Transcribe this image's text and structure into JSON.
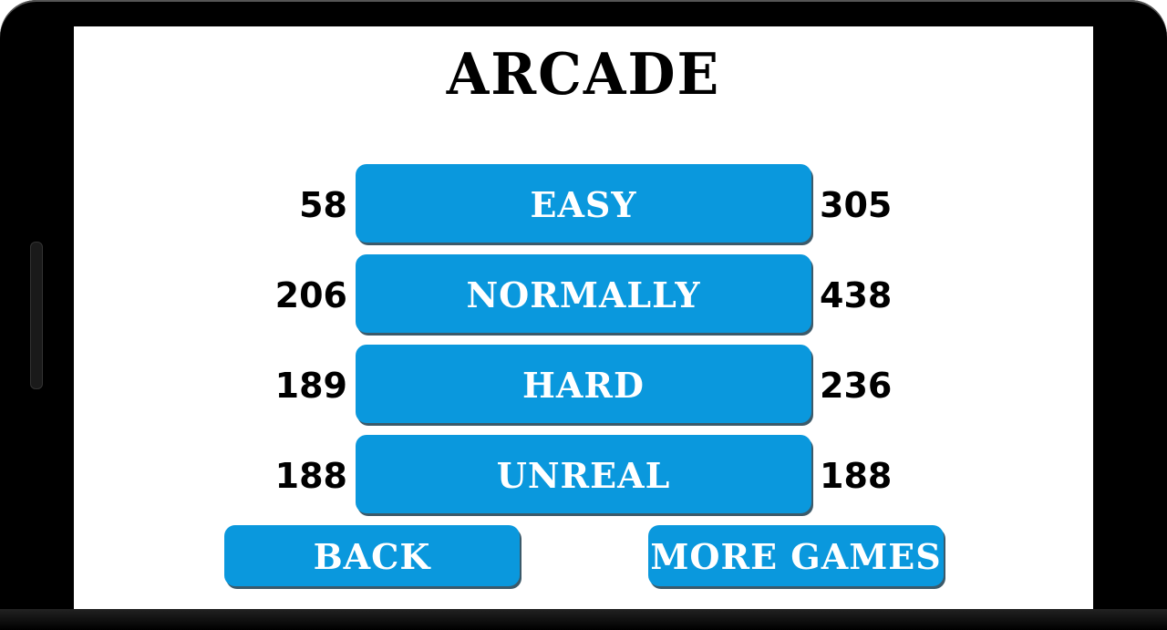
{
  "title": "ARCADE",
  "modes": [
    {
      "label": "EASY",
      "left_score": "58",
      "right_score": "305"
    },
    {
      "label": "NORMALLY",
      "left_score": "206",
      "right_score": "438"
    },
    {
      "label": "HARD",
      "left_score": "189",
      "right_score": "236"
    },
    {
      "label": "UNREAL",
      "left_score": "188",
      "right_score": "188"
    }
  ],
  "buttons": {
    "back": "BACK",
    "more_games": "MORE GAMES"
  },
  "colors": {
    "button": "#0a98dd",
    "button_shadow": "#3c5a6a",
    "text": "#000000"
  }
}
